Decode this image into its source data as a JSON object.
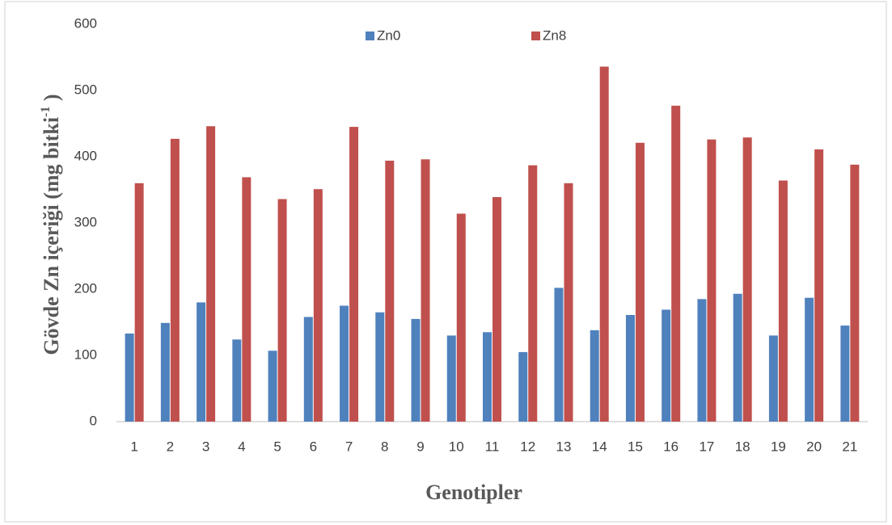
{
  "chart_data": {
    "type": "bar",
    "x_label": "Genotipler",
    "y_label": [
      "Gövde  Zn içeriği (mg bitki",
      "-1",
      " )"
    ],
    "categories": [
      "1",
      "2",
      "3",
      "4",
      "5",
      "6",
      "7",
      "8",
      "9",
      "10",
      "11",
      "12",
      "13",
      "14",
      "15",
      "16",
      "17",
      "18",
      "19",
      "20",
      "21"
    ],
    "series": [
      {
        "name": "Zn0",
        "color": "#4f81bd",
        "values": [
          133,
          149,
          180,
          124,
          107,
          158,
          175,
          165,
          155,
          130,
          135,
          105,
          202,
          138,
          161,
          169,
          185,
          193,
          130,
          187,
          145
        ]
      },
      {
        "name": "Zn8",
        "color": "#c0504d",
        "values": [
          360,
          427,
          446,
          369,
          336,
          351,
          445,
          394,
          396,
          314,
          339,
          387,
          360,
          536,
          421,
          477,
          426,
          429,
          364,
          411,
          388
        ]
      }
    ],
    "ylim": [
      0,
      600
    ],
    "yticks": [
      0,
      100,
      200,
      300,
      400,
      500,
      600
    ],
    "grid": false,
    "legend": "top"
  }
}
